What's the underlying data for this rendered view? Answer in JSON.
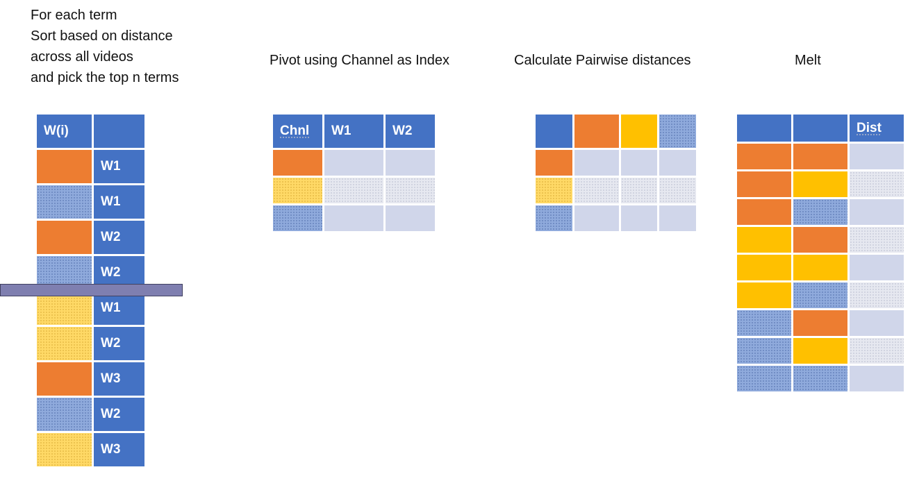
{
  "step1": {
    "lines": [
      "For each term",
      "Sort  based on distance",
      "across all videos",
      "and pick the top n terms"
    ]
  },
  "step2": {
    "title": "Pivot using Channel as Index"
  },
  "step3": {
    "title": "Calculate Pairwise distances"
  },
  "step4": {
    "title": "Melt"
  },
  "table1": {
    "header": [
      "W(i)",
      ""
    ],
    "rows": [
      {
        "color": "orange",
        "term": "W1"
      },
      {
        "color": "lblue",
        "term": "W1"
      },
      {
        "color": "orange",
        "term": "W2"
      },
      {
        "color": "lblue",
        "term": "W2"
      },
      {
        "color": "lyellow",
        "term": "W1"
      },
      {
        "color": "lyellow",
        "term": "W2"
      },
      {
        "color": "orange",
        "term": "W3"
      },
      {
        "color": "lblue",
        "term": "W2"
      },
      {
        "color": "lyellow",
        "term": "W3"
      }
    ]
  },
  "table2": {
    "header": [
      "Chnl",
      "W1",
      "W2"
    ],
    "rows": [
      "orange",
      "lyellow",
      "lblue"
    ]
  },
  "table3": {
    "header_colors": [
      "blue",
      "orange",
      "gold",
      "lblue"
    ],
    "rows": [
      "orange",
      "lyellow",
      "lblue"
    ]
  },
  "table4": {
    "header": [
      "",
      "",
      "Dist"
    ],
    "rows": [
      [
        "orange",
        "orange"
      ],
      [
        "orange",
        "gold"
      ],
      [
        "orange",
        "lblue"
      ],
      [
        "gold",
        "orange"
      ],
      [
        "gold",
        "gold"
      ],
      [
        "gold",
        "lblue"
      ],
      [
        "lblue",
        "orange"
      ],
      [
        "lblue",
        "gold"
      ],
      [
        "lblue",
        "lblue"
      ]
    ]
  },
  "colors": {
    "blue": "#4472C4",
    "orange": "#ED7D31",
    "gold": "#FFC000",
    "light_blue": "#8FAADC",
    "light_yellow": "#FFD966",
    "pale": "#D0D6EA"
  }
}
